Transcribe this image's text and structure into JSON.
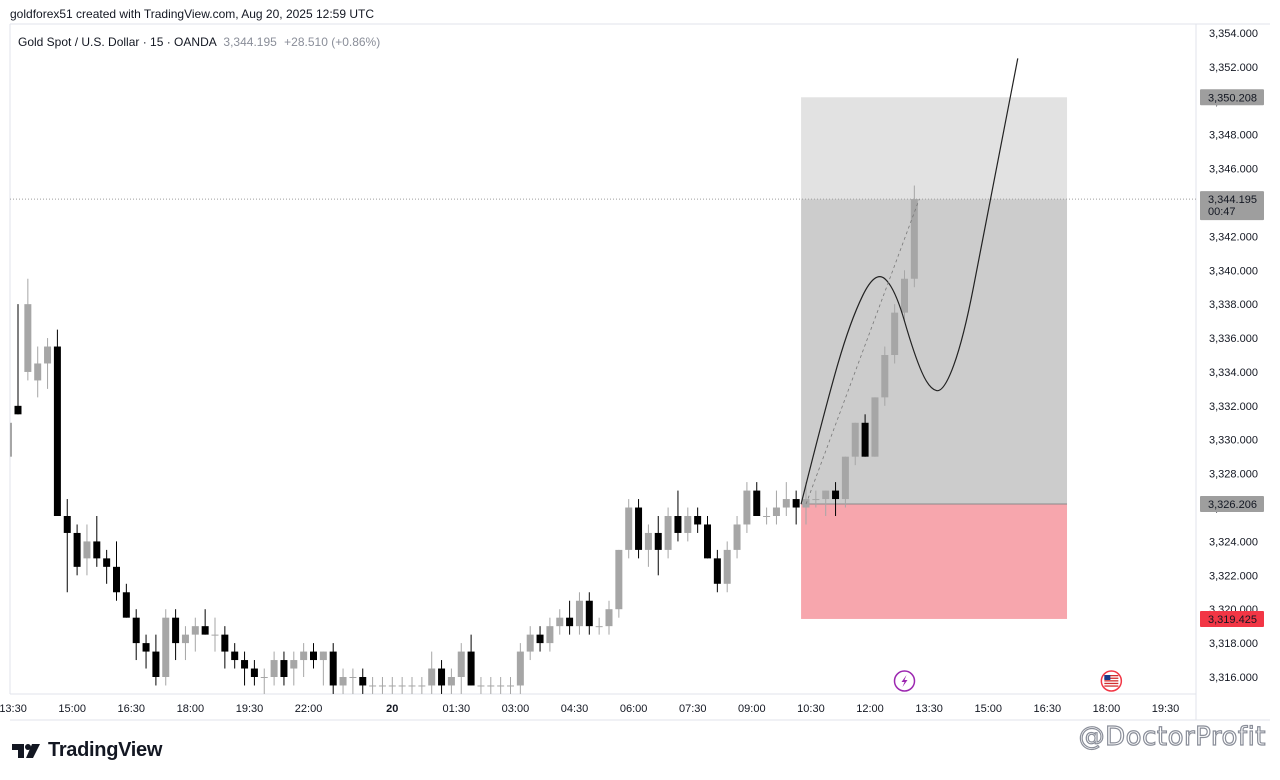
{
  "header": {
    "attribution": "goldforex51 created with TradingView.com, Aug 20, 2025 12:59 UTC",
    "symbol": "Gold Spot / U.S. Dollar · 15 · OANDA",
    "last_price": "3,344.195",
    "change": "+28.510 (+0.86%)"
  },
  "footer": {
    "brand": "TradingView",
    "watermark": "@DoctorProfit"
  },
  "colors": {
    "candle_up": "#a6a6a6",
    "candle_down": "#000000",
    "profit_zone": "#cccccc",
    "profit_zone_light": "#e2e2e2",
    "stop_zone": "#f7a6ad",
    "stop_tag": "#f23645",
    "tag_gray": "#9e9e9e"
  },
  "chart_data": {
    "type": "candlestick",
    "timeframe": "15",
    "y_axis": {
      "range": [
        3315.0,
        3355.0
      ],
      "ticks": [
        "3,316.000",
        "3,318.000",
        "3,320.000",
        "3,322.000",
        "3,324.000",
        "3,326.000",
        "3,328.000",
        "3,330.000",
        "3,332.000",
        "3,334.000",
        "3,336.000",
        "3,338.000",
        "3,340.000",
        "3,342.000",
        "3,344.000",
        "3,346.000",
        "3,348.000",
        "3,350.000",
        "3,352.000",
        "3,354.000"
      ],
      "tick_values": [
        3316,
        3318,
        3320,
        3322,
        3324,
        3326,
        3328,
        3330,
        3332,
        3334,
        3336,
        3338,
        3340,
        3342,
        3344,
        3346,
        3348,
        3350,
        3352,
        3354
      ]
    },
    "x_axis": {
      "labels": [
        "13:30",
        "15:00",
        "16:30",
        "18:00",
        "19:30",
        "22:00",
        "20",
        "01:30",
        "03:00",
        "04:30",
        "06:00",
        "07:30",
        "09:00",
        "10:30",
        "12:00",
        "13:30",
        "15:00",
        "16:30",
        "18:00",
        "19:30"
      ],
      "label_index": [
        -0.5,
        5.5,
        11.5,
        17.5,
        23.5,
        29.5,
        38,
        44.5,
        50.5,
        56.5,
        62.5,
        68.5,
        74.5,
        80.5,
        86.5,
        92.5,
        98.5,
        104.5,
        110.5,
        116.5
      ],
      "bold_label": "20",
      "spacing_per_bar": 9.85,
      "first_bar_index": 0
    },
    "candles": [
      [
        3332.0,
        3338.0,
        3331.5,
        3331.5
      ],
      [
        3334.0,
        3339.5,
        3333.5,
        3338.0
      ],
      [
        3333.5,
        3335.5,
        3332.5,
        3334.5
      ],
      [
        3334.5,
        3336.0,
        3333.0,
        3335.5
      ],
      [
        3335.5,
        3336.5,
        3325.5,
        3325.5
      ],
      [
        3325.5,
        3326.5,
        3321.0,
        3324.5
      ],
      [
        3324.5,
        3325.0,
        3322.0,
        3322.5
      ],
      [
        3323.0,
        3325.0,
        3322.0,
        3324.0
      ],
      [
        3324.0,
        3325.5,
        3322.5,
        3323.0
      ],
      [
        3323.0,
        3323.5,
        3321.5,
        3322.5
      ],
      [
        3322.5,
        3324.0,
        3320.5,
        3321.0
      ],
      [
        3321.0,
        3321.5,
        3319.5,
        3319.5
      ],
      [
        3319.5,
        3320.0,
        3317.0,
        3318.0
      ],
      [
        3318.0,
        3318.5,
        3316.5,
        3317.5
      ],
      [
        3317.5,
        3318.5,
        3315.5,
        3316.0
      ],
      [
        3316.0,
        3320.0,
        3315.5,
        3319.5
      ],
      [
        3319.5,
        3320.0,
        3317.0,
        3318.0
      ],
      [
        3318.0,
        3319.0,
        3317.0,
        3318.5
      ],
      [
        3318.5,
        3319.5,
        3317.5,
        3319.0
      ],
      [
        3319.0,
        3320.0,
        3318.5,
        3318.5
      ],
      [
        3318.5,
        3319.5,
        3317.5,
        3318.5
      ],
      [
        3318.5,
        3319.0,
        3316.5,
        3317.5
      ],
      [
        3317.5,
        3318.0,
        3316.5,
        3317.0
      ],
      [
        3317.0,
        3317.5,
        3315.5,
        3316.5
      ],
      [
        3316.5,
        3317.0,
        3315.5,
        3316.0
      ],
      [
        3316.0,
        3316.5,
        3315.0,
        3316.0
      ],
      [
        3316.0,
        3317.5,
        3315.5,
        3317.0
      ],
      [
        3317.0,
        3317.5,
        3315.5,
        3316.0
      ],
      [
        3316.5,
        3317.5,
        3315.5,
        3317.0
      ],
      [
        3317.0,
        3318.0,
        3316.0,
        3317.5
      ],
      [
        3317.5,
        3318.0,
        3316.5,
        3317.0
      ],
      [
        3317.0,
        3317.5,
        3315.5,
        3317.5
      ],
      [
        3317.5,
        3318.0,
        3315.0,
        3315.5
      ],
      [
        3315.5,
        3316.5,
        3315.0,
        3316.0
      ],
      [
        3316.0,
        3316.5,
        3315.0,
        3316.0
      ],
      [
        3316.0,
        3316.5,
        3315.0,
        3315.5
      ],
      [
        3315.5,
        3316.0,
        3315.0,
        3315.5
      ],
      [
        3315.5,
        3316.0,
        3315.0,
        3315.5
      ],
      [
        3315.5,
        3316.0,
        3315.0,
        3315.5
      ],
      [
        3315.5,
        3316.0,
        3315.0,
        3315.5
      ],
      [
        3315.5,
        3316.0,
        3315.0,
        3315.5
      ],
      [
        3315.5,
        3316.0,
        3315.0,
        3315.5
      ],
      [
        3315.5,
        3317.5,
        3315.0,
        3316.5
      ],
      [
        3316.5,
        3317.0,
        3315.0,
        3315.5
      ],
      [
        3315.5,
        3316.5,
        3315.0,
        3316.0
      ],
      [
        3316.0,
        3318.0,
        3315.0,
        3317.5
      ],
      [
        3317.5,
        3318.5,
        3315.5,
        3315.5
      ],
      [
        3315.5,
        3316.0,
        3315.0,
        3315.5
      ],
      [
        3315.5,
        3316.0,
        3315.0,
        3315.5
      ],
      [
        3315.5,
        3316.0,
        3315.0,
        3315.5
      ],
      [
        3315.5,
        3316.0,
        3315.0,
        3315.5
      ],
      [
        3315.5,
        3318.0,
        3315.0,
        3317.5
      ],
      [
        3317.5,
        3319.0,
        3317.0,
        3318.5
      ],
      [
        3318.5,
        3319.0,
        3317.5,
        3318.0
      ],
      [
        3318.0,
        3319.5,
        3317.5,
        3319.0
      ],
      [
        3319.0,
        3320.0,
        3318.5,
        3319.5
      ],
      [
        3319.5,
        3320.5,
        3318.5,
        3319.0
      ],
      [
        3319.0,
        3321.0,
        3318.5,
        3320.5
      ],
      [
        3320.5,
        3321.0,
        3318.5,
        3319.0
      ],
      [
        3319.0,
        3319.5,
        3318.5,
        3319.0
      ],
      [
        3319.0,
        3320.5,
        3318.5,
        3320.0
      ],
      [
        3320.0,
        3323.5,
        3319.5,
        3323.5
      ],
      [
        3323.5,
        3326.5,
        3323.0,
        3326.0
      ],
      [
        3326.0,
        3326.5,
        3323.0,
        3323.5
      ],
      [
        3323.5,
        3325.0,
        3322.5,
        3324.5
      ],
      [
        3324.5,
        3325.5,
        3322.0,
        3323.5
      ],
      [
        3323.5,
        3326.0,
        3323.0,
        3325.5
      ],
      [
        3325.5,
        3327.0,
        3324.0,
        3324.5
      ],
      [
        3324.5,
        3326.0,
        3324.0,
        3325.5
      ],
      [
        3325.5,
        3326.0,
        3324.5,
        3325.0
      ],
      [
        3325.0,
        3325.5,
        3323.0,
        3323.0
      ],
      [
        3323.0,
        3323.5,
        3321.0,
        3321.5
      ],
      [
        3321.5,
        3324.0,
        3321.0,
        3323.5
      ],
      [
        3323.5,
        3325.5,
        3323.0,
        3325.0
      ],
      [
        3325.0,
        3327.5,
        3324.5,
        3327.0
      ],
      [
        3327.0,
        3327.5,
        3325.5,
        3325.5
      ],
      [
        3325.5,
        3326.0,
        3325.0,
        3325.5
      ],
      [
        3325.5,
        3327.0,
        3325.0,
        3326.0
      ],
      [
        3326.0,
        3327.5,
        3325.5,
        3326.5
      ],
      [
        3326.5,
        3327.0,
        3325.0,
        3326.0
      ],
      [
        3326.0,
        3327.5,
        3325.0,
        3326.5
      ],
      [
        3326.5,
        3327.0,
        3326.0,
        3326.5
      ],
      [
        3326.5,
        3327.0,
        3325.5,
        3327.0
      ],
      [
        3327.0,
        3327.5,
        3325.5,
        3326.5
      ],
      [
        3326.5,
        3329.0,
        3326.0,
        3329.0
      ],
      [
        3329.0,
        3331.0,
        3328.5,
        3331.0
      ],
      [
        3331.0,
        3331.5,
        3329.0,
        3329.0
      ],
      [
        3329.0,
        3332.5,
        3329.0,
        3332.5
      ],
      [
        3332.5,
        3335.5,
        3332.0,
        3335.0
      ],
      [
        3335.0,
        3338.0,
        3334.5,
        3337.5
      ],
      [
        3337.5,
        3340.0,
        3337.0,
        3339.5
      ],
      [
        3339.5,
        3345.0,
        3339.0,
        3344.2
      ]
    ],
    "position": {
      "entry": 3326.206,
      "target": 3350.208,
      "stop": 3319.425,
      "current_price": 3344.195,
      "countdown": "00:47",
      "start_index": 79.5,
      "end_index": 106.5,
      "entry_label": "3,326.206",
      "target_label": "3,350.208",
      "stop_label": "3,319.425",
      "current_label": "3,344.195",
      "partial_stop_tick": "3,320.000"
    },
    "projection_path": [
      [
        79.5,
        3326.2
      ],
      [
        82,
        3332
      ],
      [
        84.5,
        3337
      ],
      [
        87,
        3340
      ],
      [
        89,
        3339
      ],
      [
        91,
        3335
      ],
      [
        92.5,
        3333
      ],
      [
        94,
        3332.8
      ],
      [
        96,
        3336
      ],
      [
        98,
        3342
      ],
      [
        100,
        3348
      ],
      [
        101.5,
        3352.5
      ]
    ],
    "dashed_line": [
      [
        80,
        3326.2
      ],
      [
        91.5,
        3344.2
      ]
    ],
    "events": [
      {
        "type": "lightning",
        "index": 90
      },
      {
        "type": "us-flag",
        "index": 111
      }
    ]
  }
}
